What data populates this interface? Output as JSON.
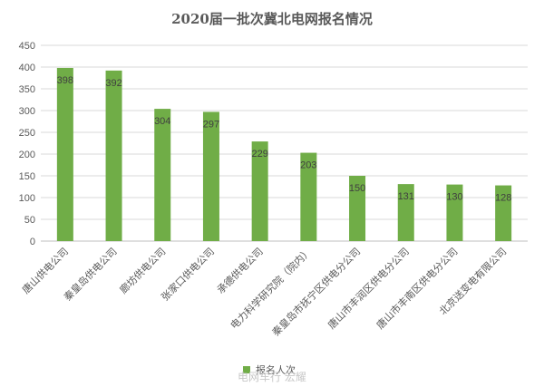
{
  "chart_data": {
    "type": "bar",
    "title": "2020届一批次冀北电网报名情况",
    "categories": [
      "唐山供电公司",
      "秦皇岛供电公司",
      "廊坊供电公司",
      "张家口供电公司",
      "承德供电公司",
      "电力科学研究院（院内）",
      "秦皇岛市抚宁区供电分公司",
      "唐山市丰润区供电分公司",
      "唐山市丰南区供电分公司",
      "北京送变电有限公司"
    ],
    "series": [
      {
        "name": "报名人次",
        "color": "#70ad47",
        "values": [
          398,
          392,
          304,
          297,
          229,
          203,
          150,
          131,
          130,
          128
        ]
      }
    ],
    "yticks": [
      0,
      50,
      100,
      150,
      200,
      250,
      300,
      350,
      400,
      450
    ],
    "ylim": [
      0,
      450
    ],
    "grid": true,
    "legend_position": "bottom"
  },
  "watermark": "电网车行 宏耀"
}
